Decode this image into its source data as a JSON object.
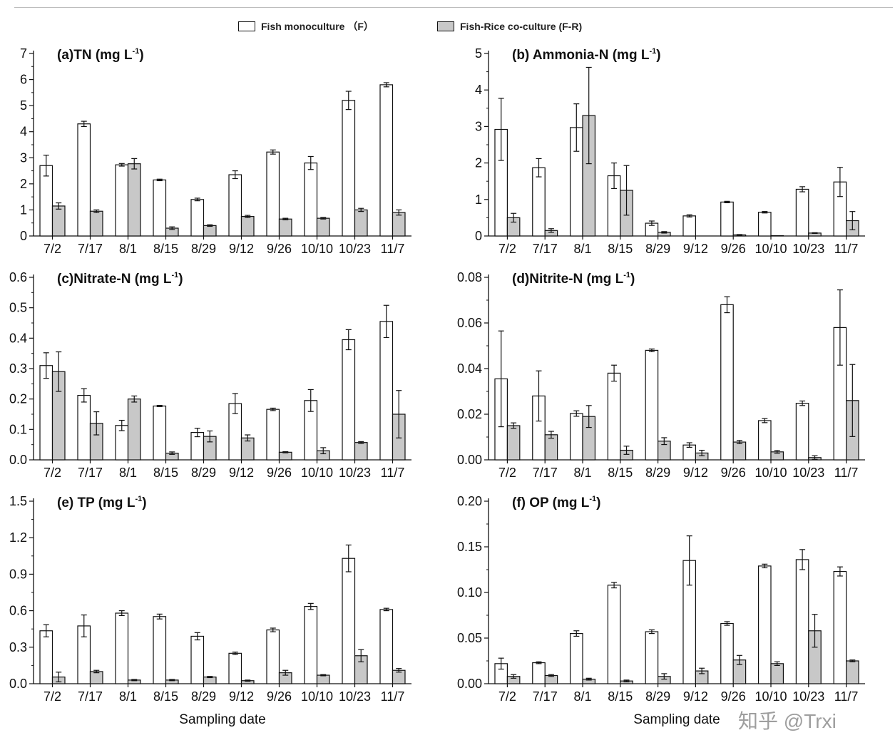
{
  "legend": {
    "items": [
      {
        "label": "Fish monoculture （F）",
        "fill": "#ffffff"
      },
      {
        "label": "Fish-Rice co-culture (F-R)",
        "fill": "#c8c8c8"
      }
    ]
  },
  "colors": {
    "mono": "#ffffff",
    "corice": "#c8c8c8",
    "stroke": "#111111"
  },
  "watermark": "知乎 @Trxi",
  "chart_data": [
    {
      "type": "bar",
      "title": "(a)TN (mg L",
      "title_sup": "-1",
      "title_close": ")",
      "xlabel": "",
      "ylabel": "",
      "ylim": [
        0,
        7
      ],
      "yticks": [
        "0",
        "1",
        "2",
        "3",
        "4",
        "5",
        "6",
        "7"
      ],
      "categories": [
        "7/2",
        "7/17",
        "8/1",
        "8/15",
        "8/29",
        "9/12",
        "9/26",
        "10/10",
        "10/23",
        "11/7"
      ],
      "series": [
        {
          "name": "Fish monoculture （F）",
          "values": [
            2.7,
            4.3,
            2.73,
            2.15,
            1.4,
            2.35,
            3.22,
            2.8,
            5.2,
            5.8
          ],
          "errors": [
            0.4,
            0.1,
            0.05,
            0.03,
            0.05,
            0.15,
            0.08,
            0.25,
            0.35,
            0.08
          ]
        },
        {
          "name": "Fish-Rice co-culture (F-R)",
          "values": [
            1.15,
            0.95,
            2.77,
            0.3,
            0.4,
            0.75,
            0.65,
            0.68,
            1.0,
            0.9
          ],
          "errors": [
            0.12,
            0.05,
            0.2,
            0.05,
            0.03,
            0.04,
            0.03,
            0.03,
            0.06,
            0.1
          ]
        }
      ]
    },
    {
      "type": "bar",
      "title": "(b) Ammonia-N (mg L",
      "title_sup": "-1",
      "title_close": ")",
      "xlabel": "",
      "ylabel": "",
      "ylim": [
        0,
        5
      ],
      "yticks": [
        "0",
        "1",
        "2",
        "3",
        "4",
        "5"
      ],
      "categories": [
        "7/2",
        "7/17",
        "8/1",
        "8/15",
        "8/29",
        "9/12",
        "9/26",
        "10/10",
        "10/23",
        "11/7"
      ],
      "series": [
        {
          "name": "Fish monoculture （F）",
          "values": [
            2.92,
            1.87,
            2.97,
            1.65,
            0.35,
            0.55,
            0.93,
            0.65,
            1.28,
            1.48
          ],
          "errors": [
            0.85,
            0.25,
            0.65,
            0.35,
            0.06,
            0.03,
            0.02,
            0.02,
            0.07,
            0.4
          ]
        },
        {
          "name": "Fish-Rice co-culture (F-R)",
          "values": [
            0.5,
            0.15,
            3.3,
            1.25,
            0.1,
            0.0,
            0.03,
            0.01,
            0.08,
            0.42
          ],
          "errors": [
            0.12,
            0.05,
            1.32,
            0.68,
            0.02,
            0.0,
            0.01,
            0.0,
            0.01,
            0.25
          ]
        }
      ]
    },
    {
      "type": "bar",
      "title": "(c)Nitrate-N (mg L",
      "title_sup": "-1",
      "title_close": ")",
      "xlabel": "",
      "ylabel": "",
      "ylim": [
        0,
        0.6
      ],
      "yticks": [
        "0.0",
        "0.1",
        "0.2",
        "0.3",
        "0.4",
        "0.5",
        "0.6"
      ],
      "categories": [
        "7/2",
        "7/17",
        "8/1",
        "8/15",
        "8/29",
        "9/12",
        "9/26",
        "10/10",
        "10/23",
        "11/7"
      ],
      "series": [
        {
          "name": "Fish monoculture （F）",
          "values": [
            0.31,
            0.212,
            0.113,
            0.177,
            0.09,
            0.185,
            0.166,
            0.195,
            0.395,
            0.455
          ],
          "errors": [
            0.042,
            0.022,
            0.017,
            0.002,
            0.014,
            0.033,
            0.004,
            0.036,
            0.033,
            0.053
          ]
        },
        {
          "name": "Fish-Rice co-culture (F-R)",
          "values": [
            0.29,
            0.12,
            0.2,
            0.022,
            0.077,
            0.072,
            0.025,
            0.03,
            0.057,
            0.15
          ],
          "errors": [
            0.065,
            0.038,
            0.01,
            0.004,
            0.018,
            0.01,
            0.002,
            0.01,
            0.003,
            0.078
          ]
        }
      ]
    },
    {
      "type": "bar",
      "title": "(d)Nitrite-N (mg L",
      "title_sup": "-1",
      "title_close": ")",
      "xlabel": "",
      "ylabel": "",
      "ylim": [
        0,
        0.08
      ],
      "yticks": [
        "0.00",
        "0.02",
        "0.04",
        "0.06",
        "0.08"
      ],
      "categories": [
        "7/2",
        "7/17",
        "8/1",
        "8/15",
        "8/29",
        "9/12",
        "9/26",
        "10/10",
        "10/23",
        "11/7"
      ],
      "series": [
        {
          "name": "Fish monoculture （F）",
          "values": [
            0.0355,
            0.028,
            0.0203,
            0.038,
            0.048,
            0.0065,
            0.068,
            0.0172,
            0.0248,
            0.058
          ],
          "errors": [
            0.021,
            0.011,
            0.0012,
            0.0035,
            0.0006,
            0.001,
            0.0035,
            0.0009,
            0.001,
            0.0165
          ]
        },
        {
          "name": "Fish-Rice co-culture (F-R)",
          "values": [
            0.015,
            0.011,
            0.019,
            0.0042,
            0.0082,
            0.003,
            0.0078,
            0.0035,
            0.001,
            0.026
          ],
          "errors": [
            0.0012,
            0.0015,
            0.0048,
            0.0018,
            0.0015,
            0.0012,
            0.0007,
            0.0006,
            0.0008,
            0.0158
          ]
        }
      ]
    },
    {
      "type": "bar",
      "title": "(e) TP (mg L",
      "title_sup": "-1",
      "title_close": ")",
      "xlabel": "Sampling date",
      "ylabel": "",
      "ylim": [
        0,
        1.5
      ],
      "yticks": [
        "0.0",
        "0.3",
        "0.6",
        "0.9",
        "1.2",
        "1.5"
      ],
      "categories": [
        "7/2",
        "7/17",
        "8/1",
        "8/15",
        "8/29",
        "9/12",
        "9/26",
        "10/10",
        "10/23",
        "11/7"
      ],
      "series": [
        {
          "name": "Fish monoculture （F）",
          "values": [
            0.435,
            0.475,
            0.58,
            0.552,
            0.39,
            0.25,
            0.442,
            0.635,
            1.03,
            0.61
          ],
          "errors": [
            0.05,
            0.09,
            0.02,
            0.02,
            0.03,
            0.01,
            0.015,
            0.025,
            0.11,
            0.01
          ]
        },
        {
          "name": "Fish-Rice co-culture (F-R)",
          "values": [
            0.055,
            0.1,
            0.03,
            0.03,
            0.055,
            0.025,
            0.09,
            0.07,
            0.23,
            0.11
          ],
          "errors": [
            0.04,
            0.01,
            0.005,
            0.005,
            0.005,
            0.005,
            0.02,
            0.005,
            0.05,
            0.015
          ]
        }
      ]
    },
    {
      "type": "bar",
      "title": "(f) OP (mg L",
      "title_sup": "-1",
      "title_close": ")",
      "xlabel": "Sampling date",
      "ylabel": "",
      "ylim": [
        0,
        0.2
      ],
      "yticks": [
        "0.00",
        "0.05",
        "0.10",
        "0.15",
        "0.20"
      ],
      "categories": [
        "7/2",
        "7/17",
        "8/1",
        "8/15",
        "8/29",
        "9/12",
        "9/26",
        "10/10",
        "10/23",
        "11/7"
      ],
      "series": [
        {
          "name": "Fish monoculture （F）",
          "values": [
            0.022,
            0.023,
            0.055,
            0.108,
            0.057,
            0.135,
            0.066,
            0.129,
            0.136,
            0.123
          ],
          "errors": [
            0.006,
            0.001,
            0.003,
            0.003,
            0.002,
            0.027,
            0.002,
            0.002,
            0.011,
            0.005
          ]
        },
        {
          "name": "Fish-Rice co-culture (F-R)",
          "values": [
            0.008,
            0.009,
            0.005,
            0.003,
            0.008,
            0.014,
            0.026,
            0.022,
            0.058,
            0.025
          ],
          "errors": [
            0.002,
            0.001,
            0.001,
            0.001,
            0.003,
            0.003,
            0.005,
            0.002,
            0.018,
            0.001
          ]
        }
      ]
    }
  ]
}
